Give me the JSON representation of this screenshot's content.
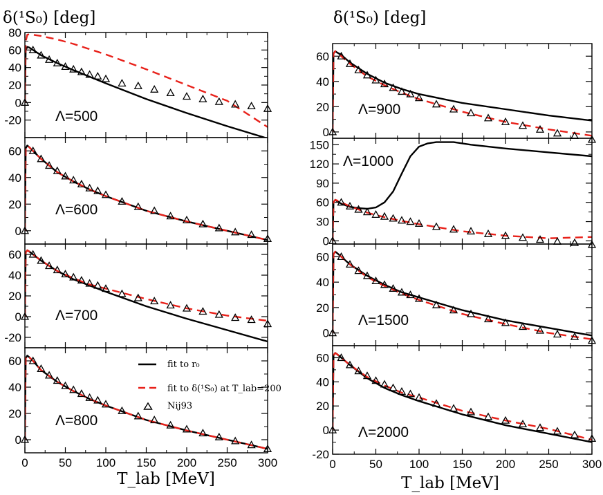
{
  "figure": {
    "column_titles": [
      "δ(¹S₀) [deg]",
      "δ(¹S₀) [deg]"
    ],
    "x_axis_label": "T_lab [MeV]"
  },
  "legend": {
    "entries": [
      {
        "label": "fit to r₀",
        "style": "solid",
        "color": "#000000"
      },
      {
        "label": "fit to δ(¹S₀) at T_lab=200",
        "style": "dashed",
        "color": "#e8211a"
      },
      {
        "label": "Nij93",
        "style": "triangle",
        "color": "#000000"
      }
    ]
  },
  "chart_data": [
    {
      "type": "line",
      "panel": "left-1",
      "annotation": "Λ=500",
      "xlim": [
        0,
        300
      ],
      "ylim": [
        -40,
        80
      ],
      "yticks": [
        -20,
        0,
        20,
        40,
        60,
        80
      ],
      "xticks": [
        0,
        50,
        100,
        150,
        200,
        250,
        300
      ],
      "show_xticklabels": false,
      "series": [
        {
          "style": "solid",
          "x": [
            0,
            1,
            3,
            5,
            10,
            20,
            40,
            60,
            80,
            100,
            150,
            200,
            250,
            300
          ],
          "y": [
            0,
            60,
            63.5,
            63,
            60,
            54,
            45,
            37,
            29.5,
            22,
            4,
            -12,
            -27,
            -41
          ]
        },
        {
          "style": "dashed",
          "x": [
            0,
            1,
            3,
            6,
            10,
            20,
            40,
            60,
            80,
            100,
            150,
            200,
            250,
            300
          ],
          "y": [
            0,
            70,
            77.5,
            78,
            77.5,
            76,
            72,
            67,
            61,
            55,
            38,
            20,
            2,
            -28
          ]
        }
      ],
      "points": {
        "x": [
          0,
          10,
          20,
          30,
          40,
          50,
          60,
          70,
          80,
          90,
          100,
          120,
          140,
          160,
          180,
          200,
          220,
          240,
          260,
          280,
          300
        ],
        "y": [
          0,
          60,
          54,
          49,
          45,
          41,
          38,
          35,
          32,
          30,
          27,
          22,
          19,
          15,
          11,
          7,
          4,
          1,
          -2,
          -4,
          -7
        ]
      }
    },
    {
      "type": "line",
      "panel": "left-2",
      "annotation": "Λ=600",
      "xlim": [
        0,
        300
      ],
      "ylim": [
        -10,
        70
      ],
      "yticks": [
        0,
        20,
        40,
        60
      ],
      "xticks": [
        0,
        50,
        100,
        150,
        200,
        250,
        300
      ],
      "show_xticklabels": false,
      "series": [
        {
          "style": "solid",
          "x": [
            0,
            1,
            3,
            5,
            10,
            20,
            40,
            60,
            80,
            100,
            150,
            200,
            250,
            300
          ],
          "y": [
            0,
            62,
            64,
            63,
            60,
            54,
            44,
            37,
            31,
            26,
            15,
            7,
            0,
            -7
          ]
        },
        {
          "style": "dashed",
          "x": [
            0,
            1,
            3,
            5,
            10,
            20,
            40,
            60,
            80,
            100,
            150,
            200,
            250,
            300
          ],
          "y": [
            0,
            62,
            64,
            63,
            60,
            54,
            44,
            37,
            31,
            26,
            15,
            7,
            0,
            -7
          ]
        }
      ],
      "points": {
        "x": [
          0,
          10,
          20,
          30,
          40,
          50,
          60,
          70,
          80,
          90,
          100,
          120,
          140,
          160,
          180,
          200,
          220,
          240,
          260,
          280,
          300
        ],
        "y": [
          0,
          60,
          54,
          49,
          45,
          41,
          38,
          35,
          32,
          30,
          27,
          22,
          18,
          15,
          11,
          8,
          5,
          2,
          -1,
          -3,
          -6
        ]
      }
    },
    {
      "type": "line",
      "panel": "left-3",
      "annotation": "Λ=700",
      "xlim": [
        0,
        300
      ],
      "ylim": [
        -30,
        70
      ],
      "yticks": [
        -20,
        0,
        20,
        40,
        60
      ],
      "xticks": [
        0,
        50,
        100,
        150,
        200,
        250,
        300
      ],
      "show_xticklabels": false,
      "series": [
        {
          "style": "solid",
          "x": [
            0,
            1,
            3,
            5,
            10,
            20,
            40,
            60,
            80,
            100,
            150,
            200,
            250,
            300
          ],
          "y": [
            0,
            62,
            64,
            63,
            60,
            54,
            44,
            36,
            30,
            24,
            10,
            -2,
            -13,
            -24
          ]
        },
        {
          "style": "dashed",
          "x": [
            0,
            1,
            3,
            5,
            10,
            20,
            40,
            60,
            80,
            100,
            150,
            200,
            250,
            300
          ],
          "y": [
            0,
            62,
            64,
            63,
            60,
            54,
            44,
            37,
            31,
            27,
            17,
            8,
            1,
            -4
          ]
        }
      ],
      "points": {
        "x": [
          0,
          10,
          20,
          30,
          40,
          50,
          60,
          70,
          80,
          90,
          100,
          120,
          140,
          160,
          180,
          200,
          220,
          240,
          260,
          280,
          300
        ],
        "y": [
          0,
          60,
          54,
          49,
          45,
          41,
          38,
          35,
          32,
          30,
          27,
          22,
          18,
          15,
          11,
          8,
          5,
          2,
          -1,
          -3,
          -7
        ]
      }
    },
    {
      "type": "line",
      "panel": "left-4",
      "annotation": "Λ=800",
      "xlim": [
        0,
        300
      ],
      "ylim": [
        -10,
        70
      ],
      "yticks": [
        0,
        20,
        40,
        60
      ],
      "xticks": [
        0,
        50,
        100,
        150,
        200,
        250,
        300
      ],
      "show_xticklabels": true,
      "series": [
        {
          "style": "solid",
          "x": [
            0,
            1,
            3,
            5,
            10,
            20,
            40,
            60,
            80,
            100,
            150,
            200,
            250,
            300
          ],
          "y": [
            0,
            62,
            64,
            63,
            60,
            53,
            44,
            37,
            31,
            26,
            15,
            7,
            0,
            -7
          ]
        },
        {
          "style": "dashed",
          "x": [
            0,
            1,
            3,
            5,
            10,
            20,
            40,
            60,
            80,
            100,
            150,
            200,
            250,
            300
          ],
          "y": [
            0,
            62,
            64,
            63,
            60,
            53,
            44,
            37,
            31,
            26,
            15,
            7,
            0,
            -7
          ]
        }
      ],
      "points": {
        "x": [
          0,
          10,
          20,
          30,
          40,
          50,
          60,
          70,
          80,
          90,
          100,
          120,
          140,
          160,
          180,
          200,
          220,
          240,
          260,
          280,
          300
        ],
        "y": [
          0,
          60,
          54,
          49,
          45,
          41,
          38,
          35,
          32,
          30,
          27,
          22,
          18,
          15,
          11,
          8,
          5,
          2,
          -1,
          -4,
          -7
        ]
      }
    },
    {
      "type": "line",
      "panel": "right-1",
      "annotation": "Λ=900",
      "xlim": [
        0,
        300
      ],
      "ylim": [
        -5,
        70
      ],
      "yticks": [
        0,
        20,
        40,
        60
      ],
      "xticks": [
        0,
        50,
        100,
        150,
        200,
        250,
        300
      ],
      "show_xticklabels": false,
      "series": [
        {
          "style": "solid",
          "x": [
            0,
            1,
            3,
            5,
            10,
            20,
            40,
            60,
            80,
            100,
            150,
            200,
            250,
            300
          ],
          "y": [
            0,
            62,
            64,
            63,
            61,
            55,
            46,
            39,
            34,
            30,
            23,
            18,
            13,
            9
          ]
        },
        {
          "style": "dashed",
          "x": [
            0,
            1,
            3,
            5,
            10,
            20,
            40,
            60,
            80,
            100,
            150,
            200,
            250,
            300
          ],
          "y": [
            0,
            62,
            64,
            63,
            60,
            54,
            44,
            37,
            31,
            26,
            16,
            8,
            2,
            -3
          ]
        }
      ],
      "points": {
        "x": [
          0,
          10,
          20,
          30,
          40,
          50,
          60,
          70,
          80,
          90,
          100,
          120,
          140,
          160,
          180,
          200,
          220,
          240,
          260,
          280,
          300
        ],
        "y": [
          0,
          60,
          54,
          49,
          45,
          41,
          38,
          35,
          32,
          30,
          27,
          22,
          18,
          15,
          11,
          8,
          5,
          2,
          -1,
          -3,
          -6
        ]
      }
    },
    {
      "type": "line",
      "panel": "right-2",
      "annotation": "Λ=1000",
      "xlim": [
        0,
        300
      ],
      "ylim": [
        -5,
        160
      ],
      "yticks": [
        0,
        30,
        60,
        90,
        120,
        150
      ],
      "xticks": [
        0,
        50,
        100,
        150,
        200,
        250,
        300
      ],
      "show_xticklabels": false,
      "series": [
        {
          "style": "solid",
          "x": [
            0,
            1,
            3,
            5,
            10,
            20,
            30,
            40,
            50,
            60,
            70,
            80,
            90,
            100,
            110,
            120,
            140,
            160,
            200,
            250,
            300
          ],
          "y": [
            0,
            60,
            64,
            62,
            58,
            53,
            51,
            50,
            52,
            60,
            77,
            105,
            132,
            147,
            152,
            154,
            154,
            150,
            144,
            138,
            132
          ]
        },
        {
          "style": "dashed",
          "x": [
            0,
            1,
            3,
            5,
            10,
            20,
            40,
            60,
            80,
            100,
            150,
            200,
            250,
            300
          ],
          "y": [
            0,
            60,
            64,
            63,
            60,
            54,
            44,
            37,
            31,
            26,
            15,
            8,
            4,
            6
          ]
        }
      ],
      "points": {
        "x": [
          0,
          10,
          20,
          30,
          40,
          50,
          60,
          70,
          80,
          90,
          100,
          120,
          140,
          160,
          180,
          200,
          220,
          240,
          260,
          280,
          300
        ],
        "y": [
          0,
          60,
          54,
          49,
          45,
          41,
          38,
          35,
          32,
          30,
          27,
          22,
          18,
          15,
          11,
          8,
          5,
          2,
          -1,
          -3,
          -6
        ]
      }
    },
    {
      "type": "line",
      "panel": "right-3",
      "annotation": "Λ=1500",
      "xlim": [
        0,
        300
      ],
      "ylim": [
        -10,
        70
      ],
      "yticks": [
        0,
        20,
        40,
        60
      ],
      "xticks": [
        0,
        50,
        100,
        150,
        200,
        250,
        300
      ],
      "show_xticklabels": false,
      "series": [
        {
          "style": "solid",
          "x": [
            0,
            1,
            3,
            5,
            10,
            20,
            40,
            60,
            80,
            100,
            150,
            200,
            250,
            300
          ],
          "y": [
            0,
            62,
            64,
            63,
            60,
            54,
            45,
            38,
            32,
            28,
            18,
            10,
            4,
            -2
          ]
        },
        {
          "style": "dashed",
          "x": [
            0,
            1,
            3,
            5,
            10,
            20,
            40,
            60,
            80,
            100,
            150,
            200,
            250,
            300
          ],
          "y": [
            0,
            62,
            64,
            63,
            60,
            54,
            44,
            37,
            31,
            26,
            15,
            7,
            0,
            -5
          ]
        }
      ],
      "points": {
        "x": [
          0,
          10,
          20,
          30,
          40,
          50,
          60,
          70,
          80,
          90,
          100,
          120,
          140,
          160,
          180,
          200,
          220,
          240,
          260,
          280,
          300
        ],
        "y": [
          0,
          60,
          54,
          49,
          45,
          41,
          38,
          35,
          32,
          30,
          27,
          22,
          18,
          15,
          11,
          8,
          5,
          2,
          -1,
          -3,
          -6
        ]
      }
    },
    {
      "type": "line",
      "panel": "right-4",
      "annotation": "Λ=2000",
      "xlim": [
        0,
        300
      ],
      "ylim": [
        -20,
        70
      ],
      "yticks": [
        -20,
        0,
        20,
        40,
        60
      ],
      "xticks": [
        0,
        50,
        100,
        150,
        200,
        250,
        300
      ],
      "show_xticklabels": true,
      "series": [
        {
          "style": "solid",
          "x": [
            0,
            1,
            3,
            5,
            10,
            20,
            40,
            60,
            80,
            100,
            150,
            200,
            250,
            300
          ],
          "y": [
            0,
            62,
            64,
            63,
            60,
            54,
            43,
            35,
            29,
            24,
            13,
            4,
            -3,
            -10
          ]
        },
        {
          "style": "dashed",
          "x": [
            0,
            1,
            3,
            5,
            10,
            20,
            40,
            60,
            80,
            100,
            150,
            200,
            250,
            300
          ],
          "y": [
            0,
            62,
            64,
            63,
            60,
            54,
            44,
            37,
            31,
            27,
            16,
            8,
            1,
            -8
          ]
        }
      ],
      "points": {
        "x": [
          0,
          10,
          20,
          30,
          40,
          50,
          60,
          70,
          80,
          90,
          100,
          120,
          140,
          160,
          180,
          200,
          220,
          240,
          260,
          280,
          300
        ],
        "y": [
          0,
          60,
          54,
          49,
          45,
          41,
          38,
          35,
          32,
          30,
          27,
          22,
          18,
          15,
          11,
          8,
          5,
          2,
          -1,
          -4,
          -7
        ]
      }
    }
  ]
}
